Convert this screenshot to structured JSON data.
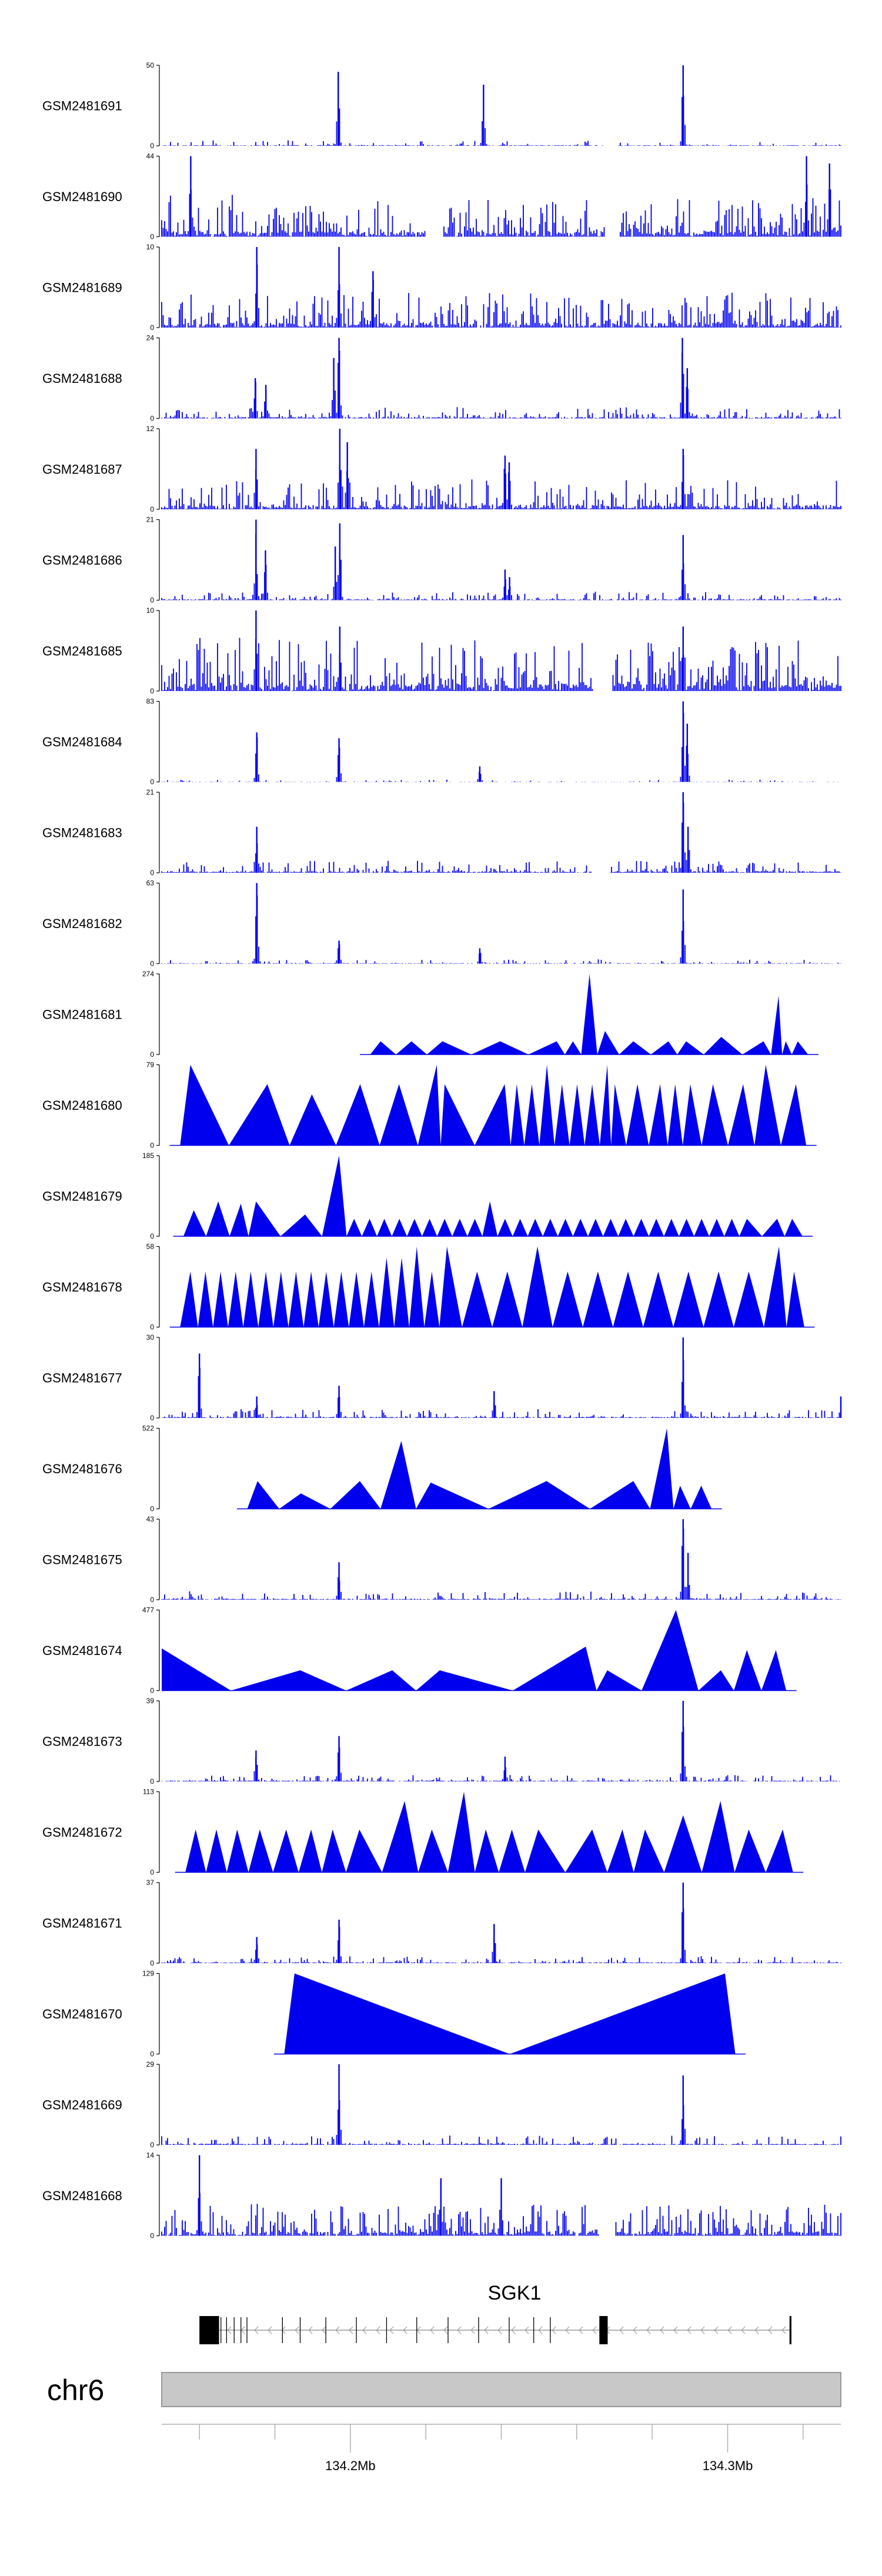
{
  "chart_data": {
    "type": "area",
    "title": "",
    "colors": {
      "signal": "#0000ee",
      "axis": "#000000",
      "ideogram": "#c8c8c8",
      "ideogram_border": "#808080",
      "gene": "#000000",
      "intron": "#9a9a9a"
    },
    "x_range_mb": [
      134.15,
      134.33
    ],
    "tracks": [
      {
        "name": "GSM2481691",
        "ymax": 50,
        "style": "dense",
        "noise": 3,
        "density": 0.2,
        "peaks": [
          [
            134.1968,
            46
          ],
          [
            134.2353,
            38
          ],
          [
            134.2882,
            50
          ]
        ],
        "gaps": [
          [
            134.2669,
            134.2711
          ]
        ]
      },
      {
        "name": "GSM2481690",
        "ymax": 44,
        "style": "dense",
        "noise": 20,
        "density": 0.6,
        "peaks": [
          [
            134.1577,
            44
          ],
          [
            134.3209,
            44
          ],
          [
            134.327,
            40
          ]
        ],
        "gaps": [
          [
            134.2198,
            134.2248
          ],
          [
            134.2673,
            134.2714
          ]
        ]
      },
      {
        "name": "GSM2481689",
        "ymax": 10,
        "style": "dense",
        "noise": 4,
        "density": 0.55,
        "peaks": [
          [
            134.1752,
            10
          ],
          [
            134.197,
            10
          ],
          [
            134.206,
            7
          ]
        ],
        "gaps": []
      },
      {
        "name": "GSM2481688",
        "ymax": 24,
        "style": "dense",
        "noise": 3,
        "density": 0.35,
        "peaks": [
          [
            134.1748,
            12
          ],
          [
            134.1776,
            10
          ],
          [
            134.197,
            24
          ],
          [
            134.1956,
            18
          ],
          [
            134.288,
            24
          ],
          [
            134.2893,
            15
          ]
        ],
        "gaps": []
      },
      {
        "name": "GSM2481687",
        "ymax": 12,
        "style": "dense",
        "noise": 4,
        "density": 0.5,
        "peaks": [
          [
            134.175,
            9
          ],
          [
            134.1972,
            12
          ],
          [
            134.1992,
            10
          ],
          [
            134.241,
            8
          ],
          [
            134.2421,
            7
          ],
          [
            134.2882,
            9
          ]
        ],
        "gaps": []
      },
      {
        "name": "GSM2481686",
        "ymax": 21,
        "style": "dense",
        "noise": 2,
        "density": 0.35,
        "peaks": [
          [
            134.175,
            21
          ],
          [
            134.1775,
            13
          ],
          [
            134.1972,
            20
          ],
          [
            134.196,
            14
          ],
          [
            134.241,
            8
          ],
          [
            134.2422,
            6
          ],
          [
            134.2882,
            17
          ]
        ],
        "gaps": []
      },
      {
        "name": "GSM2481685",
        "ymax": 10,
        "style": "dense",
        "noise": 6,
        "density": 0.65,
        "peaks": [
          [
            134.175,
            10
          ],
          [
            134.1972,
            8
          ],
          [
            134.2882,
            8
          ]
        ],
        "gaps": [
          [
            134.2645,
            134.2693
          ]
        ]
      },
      {
        "name": "GSM2481684",
        "ymax": 83,
        "style": "dense",
        "noise": 2,
        "density": 0.15,
        "peaks": [
          [
            134.1752,
            51
          ],
          [
            134.197,
            45
          ],
          [
            134.2343,
            16
          ],
          [
            134.2882,
            83
          ],
          [
            134.2893,
            60
          ]
        ],
        "gaps": []
      },
      {
        "name": "GSM2481683",
        "ymax": 21,
        "style": "dense",
        "noise": 3,
        "density": 0.35,
        "peaks": [
          [
            134.1752,
            12
          ],
          [
            134.2882,
            21
          ],
          [
            134.2895,
            12
          ]
        ],
        "gaps": [
          [
            134.264,
            134.2686
          ]
        ]
      },
      {
        "name": "GSM2481682",
        "ymax": 63,
        "style": "dense",
        "noise": 3,
        "density": 0.25,
        "peaks": [
          [
            134.1752,
            63
          ],
          [
            134.197,
            18
          ],
          [
            134.2343,
            12
          ],
          [
            134.2882,
            58
          ]
        ],
        "gaps": []
      },
      {
        "name": "GSM2481681",
        "ymax": 274,
        "style": "sparse",
        "peaks": [
          [
            134.208,
            45
          ],
          [
            134.2162,
            45
          ],
          [
            134.2244,
            45
          ],
          [
            134.2397,
            45
          ],
          [
            134.2547,
            45
          ],
          [
            134.259,
            45
          ],
          [
            134.2634,
            274
          ],
          [
            134.2675,
            80
          ],
          [
            134.275,
            45
          ],
          [
            134.2843,
            45
          ],
          [
            134.289,
            45
          ],
          [
            134.2983,
            60
          ],
          [
            134.3095,
            45
          ],
          [
            134.3135,
            200
          ],
          [
            134.3154,
            45
          ],
          [
            134.3186,
            45
          ]
        ]
      },
      {
        "name": "GSM2481680",
        "ymax": 79,
        "style": "sparse",
        "peaks": [
          [
            134.1576,
            79
          ],
          [
            134.178,
            60
          ],
          [
            134.1898,
            50
          ],
          [
            134.2026,
            60
          ],
          [
            134.2129,
            60
          ],
          [
            134.2229,
            79
          ],
          [
            134.225,
            60
          ],
          [
            134.2409,
            60
          ],
          [
            134.2441,
            60
          ],
          [
            134.2481,
            60
          ],
          [
            134.2521,
            79
          ],
          [
            134.2561,
            60
          ],
          [
            134.2601,
            60
          ],
          [
            134.2641,
            60
          ],
          [
            134.2681,
            79
          ],
          [
            134.2701,
            60
          ],
          [
            134.2761,
            60
          ],
          [
            134.2821,
            60
          ],
          [
            134.2861,
            60
          ],
          [
            134.2901,
            60
          ],
          [
            134.2961,
            60
          ],
          [
            134.3041,
            60
          ],
          [
            134.3101,
            79
          ],
          [
            134.3181,
            60
          ]
        ]
      },
      {
        "name": "GSM2481679",
        "ymax": 185,
        "style": "sparse",
        "peaks": [
          [
            134.1585,
            60
          ],
          [
            134.165,
            80
          ],
          [
            134.171,
            75
          ],
          [
            134.175,
            80
          ],
          [
            134.188,
            50
          ],
          [
            134.197,
            185
          ],
          [
            134.201,
            40
          ],
          [
            134.2051,
            40
          ],
          [
            134.209,
            40
          ],
          [
            134.213,
            40
          ],
          [
            134.217,
            40
          ],
          [
            134.221,
            40
          ],
          [
            134.225,
            40
          ],
          [
            134.229,
            40
          ],
          [
            134.233,
            40
          ],
          [
            134.237,
            80
          ],
          [
            134.241,
            40
          ],
          [
            134.245,
            40
          ],
          [
            134.249,
            40
          ],
          [
            134.253,
            40
          ],
          [
            134.257,
            40
          ],
          [
            134.261,
            40
          ],
          [
            134.265,
            40
          ],
          [
            134.269,
            40
          ],
          [
            134.273,
            40
          ],
          [
            134.2771,
            40
          ],
          [
            134.2811,
            40
          ],
          [
            134.2851,
            40
          ],
          [
            134.2891,
            40
          ],
          [
            134.2931,
            40
          ],
          [
            134.2971,
            40
          ],
          [
            134.3011,
            40
          ],
          [
            134.3051,
            40
          ],
          [
            134.3131,
            40
          ],
          [
            134.3171,
            40
          ]
        ]
      },
      {
        "name": "GSM2481678",
        "ymax": 58,
        "style": "sparse",
        "peaks": [
          [
            134.1576,
            40
          ],
          [
            134.1616,
            40
          ],
          [
            134.1656,
            40
          ],
          [
            134.1696,
            40
          ],
          [
            134.1736,
            40
          ],
          [
            134.1776,
            40
          ],
          [
            134.1816,
            40
          ],
          [
            134.1856,
            40
          ],
          [
            134.1896,
            40
          ],
          [
            134.1936,
            40
          ],
          [
            134.1976,
            40
          ],
          [
            134.2016,
            40
          ],
          [
            134.2056,
            40
          ],
          [
            134.2096,
            50
          ],
          [
            134.2136,
            50
          ],
          [
            134.2176,
            58
          ],
          [
            134.2216,
            40
          ],
          [
            134.2256,
            58
          ],
          [
            134.2336,
            40
          ],
          [
            134.2416,
            40
          ],
          [
            134.2496,
            58
          ],
          [
            134.2576,
            40
          ],
          [
            134.2656,
            40
          ],
          [
            134.2736,
            40
          ],
          [
            134.2816,
            40
          ],
          [
            134.2896,
            40
          ],
          [
            134.2976,
            40
          ],
          [
            134.3056,
            40
          ],
          [
            134.3136,
            58
          ],
          [
            134.3176,
            40
          ]
        ]
      },
      {
        "name": "GSM2481677",
        "ymax": 30,
        "style": "dense",
        "noise": 3,
        "density": 0.3,
        "peaks": [
          [
            134.16,
            24
          ],
          [
            134.1752,
            8
          ],
          [
            134.197,
            12
          ],
          [
            134.2381,
            10
          ],
          [
            134.2882,
            30
          ],
          [
            134.33,
            8
          ]
        ],
        "gaps": []
      },
      {
        "name": "GSM2481676",
        "ymax": 522,
        "style": "sparse",
        "peaks": [
          [
            134.1754,
            180
          ],
          [
            134.1869,
            100
          ],
          [
            134.2025,
            180
          ],
          [
            134.2135,
            440
          ],
          [
            134.2213,
            170
          ],
          [
            134.252,
            180
          ],
          [
            134.275,
            180
          ],
          [
            134.2839,
            522
          ],
          [
            134.2874,
            150
          ],
          [
            134.293,
            150
          ]
        ]
      },
      {
        "name": "GSM2481675",
        "ymax": 43,
        "style": "dense",
        "noise": 4,
        "density": 0.3,
        "peaks": [
          [
            134.197,
            20
          ],
          [
            134.2882,
            43
          ],
          [
            134.2895,
            25
          ]
        ],
        "gaps": []
      },
      {
        "name": "GSM2481674",
        "ymax": 477,
        "style": "sparse",
        "peaks": [
          [
            134.15,
            250
          ],
          [
            134.1867,
            120
          ],
          [
            134.2111,
            120
          ],
          [
            134.2237,
            120
          ],
          [
            134.2624,
            260
          ],
          [
            134.2681,
            120
          ],
          [
            134.2863,
            477
          ],
          [
            134.2982,
            120
          ],
          [
            134.3051,
            240
          ],
          [
            134.3128,
            240
          ]
        ]
      },
      {
        "name": "GSM2481673",
        "ymax": 39,
        "style": "dense",
        "noise": 3,
        "density": 0.3,
        "peaks": [
          [
            134.175,
            15
          ],
          [
            134.197,
            22
          ],
          [
            134.241,
            12
          ],
          [
            134.2882,
            39
          ]
        ],
        "gaps": []
      },
      {
        "name": "GSM2481672",
        "ymax": 113,
        "style": "sparse",
        "peaks": [
          [
            134.159,
            60
          ],
          [
            134.1645,
            60
          ],
          [
            134.17,
            60
          ],
          [
            134.176,
            60
          ],
          [
            134.183,
            60
          ],
          [
            134.1896,
            60
          ],
          [
            134.1953,
            60
          ],
          [
            134.2024,
            60
          ],
          [
            134.2144,
            100
          ],
          [
            134.2216,
            60
          ],
          [
            134.2301,
            113
          ],
          [
            134.2359,
            60
          ],
          [
            134.2428,
            60
          ],
          [
            134.2498,
            60
          ],
          [
            134.2641,
            60
          ],
          [
            134.2721,
            60
          ],
          [
            134.2781,
            60
          ],
          [
            134.2882,
            80
          ],
          [
            134.2981,
            100
          ],
          [
            134.3056,
            60
          ],
          [
            134.3146,
            60
          ]
        ]
      },
      {
        "name": "GSM2481671",
        "ymax": 37,
        "style": "dense",
        "noise": 3,
        "density": 0.3,
        "peaks": [
          [
            134.1752,
            12
          ],
          [
            134.197,
            20
          ],
          [
            134.2381,
            18
          ],
          [
            134.2882,
            37
          ]
        ],
        "gaps": []
      },
      {
        "name": "GSM2481670",
        "ymax": 129,
        "style": "sparse",
        "peaks": [
          [
            134.1852,
            129
          ],
          [
            134.2993,
            129
          ]
        ]
      },
      {
        "name": "GSM2481669",
        "ymax": 29,
        "style": "dense",
        "noise": 3,
        "density": 0.25,
        "peaks": [
          [
            134.197,
            29
          ],
          [
            134.2882,
            25
          ]
        ],
        "gaps": []
      },
      {
        "name": "GSM2481668",
        "ymax": 14,
        "style": "dense",
        "noise": 5,
        "density": 0.55,
        "peaks": [
          [
            134.16,
            14
          ],
          [
            134.224,
            10
          ],
          [
            134.24,
            10
          ]
        ],
        "gaps": [
          [
            134.266,
            134.2701
          ]
        ]
      }
    ],
    "gene": {
      "name": "SGK1",
      "strand": "-",
      "start_mb": 134.16,
      "end_mb": 134.3169,
      "exons_mb": [
        [
          134.16,
          134.1652
        ],
        [
          134.266,
          134.2682
        ],
        [
          134.3164,
          134.3169
        ]
      ],
      "extra_marks_mb": [
        134.1614,
        134.1621,
        134.1628,
        134.1636,
        134.1657,
        134.1672,
        134.1692,
        134.171,
        134.1726,
        134.182,
        134.1867,
        134.1935,
        134.2016,
        134.2096,
        134.2176,
        134.2259,
        134.234,
        134.2421,
        134.2486,
        134.253
      ]
    },
    "ideogram": {
      "chromosome": "chr6",
      "ticks_mb": [
        134.16,
        134.18,
        134.2,
        134.22,
        134.24,
        134.26,
        134.28,
        134.3,
        134.32
      ],
      "labels": [
        {
          "pos": 134.2,
          "text": "134.2Mb"
        },
        {
          "pos": 134.3,
          "text": "134.3Mb"
        }
      ]
    }
  }
}
